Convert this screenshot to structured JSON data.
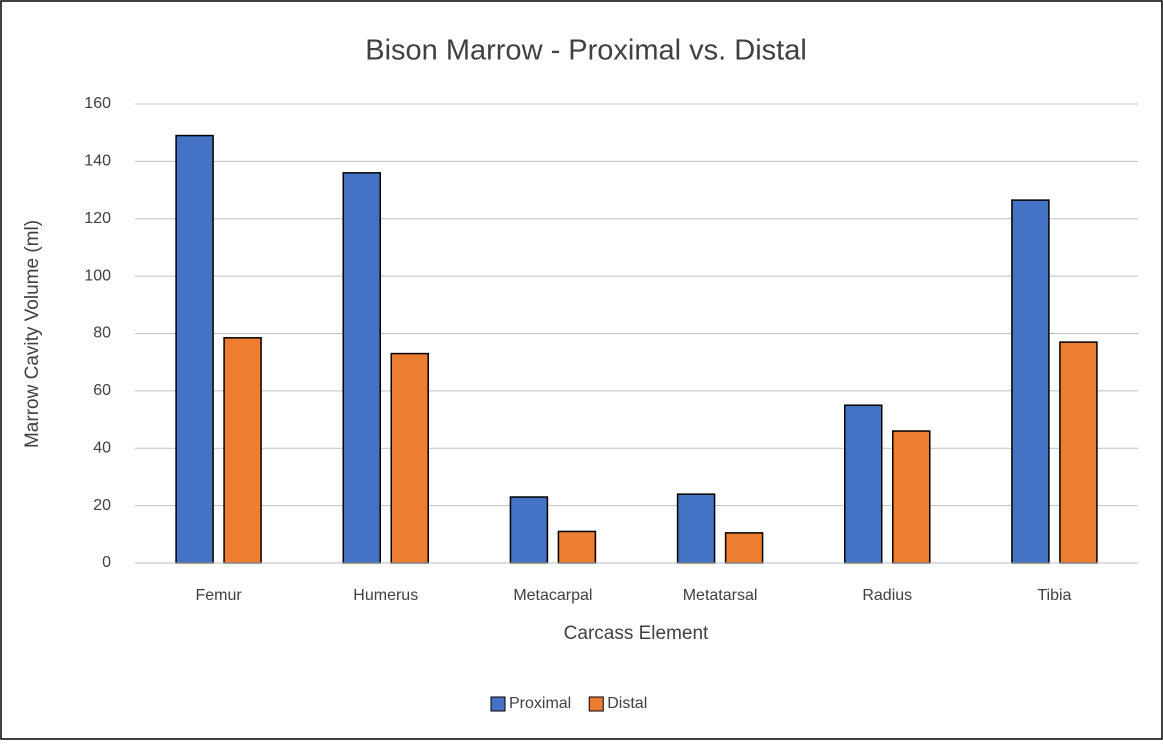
{
  "chart_data": {
    "type": "bar",
    "title": "Bison Marrow - Proximal vs. Distal",
    "x_label": "Carcass Element",
    "y_label": "Marrow Cavity Volume (ml)",
    "categories": [
      "Femur",
      "Humerus",
      "Metacarpal",
      "Metatarsal",
      "Radius",
      "Tibia"
    ],
    "series": [
      {
        "name": "Proximal",
        "color": "#4472c4",
        "values": [
          149,
          136,
          23,
          24,
          55,
          126.5
        ]
      },
      {
        "name": "Distal",
        "color": "#ed7d31",
        "values": [
          78.5,
          73,
          11,
          10.5,
          46,
          77
        ]
      }
    ],
    "ylim": [
      0,
      160
    ],
    "yticks": [
      0,
      20,
      40,
      60,
      80,
      100,
      120,
      140,
      160
    ],
    "grid": true,
    "legend": "bottom"
  }
}
